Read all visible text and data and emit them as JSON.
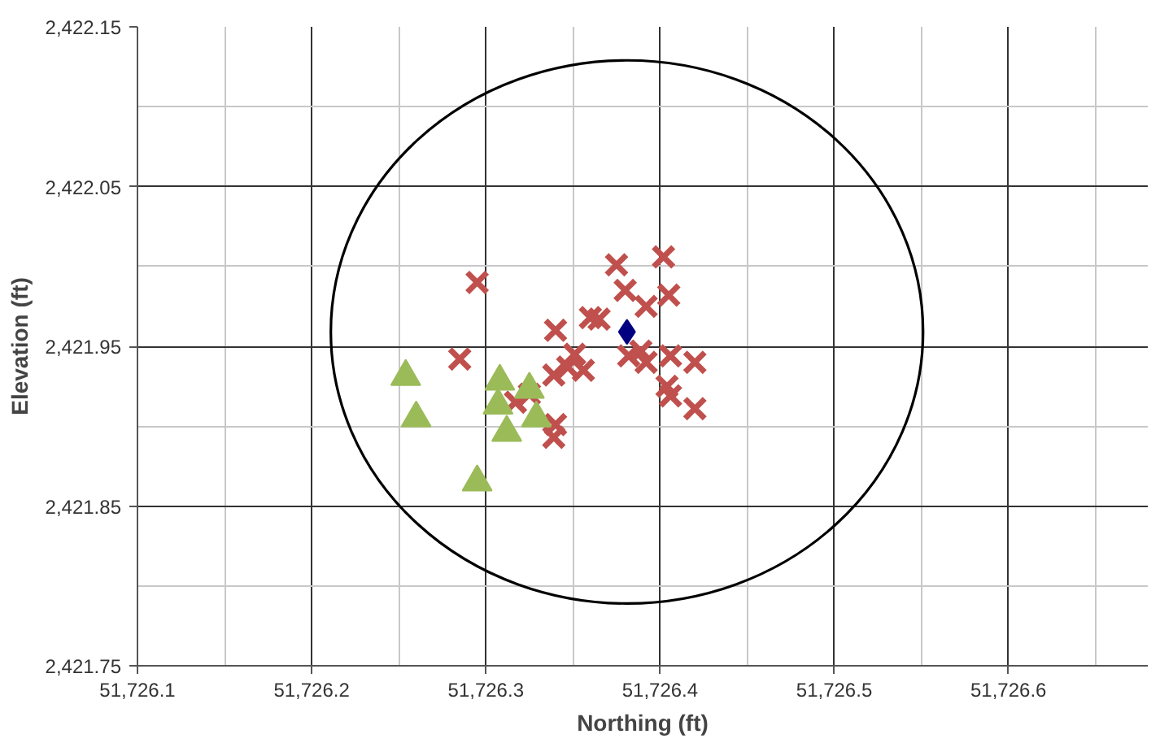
{
  "chart_data": {
    "type": "scatter",
    "xlabel": "Northing (ft)",
    "ylabel": "Elevation (ft)",
    "xlim": [
      51726.1,
      51726.68
    ],
    "ylim": [
      2421.75,
      2422.15
    ],
    "xticks": [
      {
        "value": 51726.1,
        "label": "51,726.1"
      },
      {
        "value": 51726.2,
        "label": "51,726.2"
      },
      {
        "value": 51726.3,
        "label": "51,726.3"
      },
      {
        "value": 51726.4,
        "label": "51,726.4"
      },
      {
        "value": 51726.5,
        "label": "51,726.5"
      },
      {
        "value": 51726.6,
        "label": "51,726.6"
      }
    ],
    "yticks": [
      {
        "value": 2421.75,
        "label": "2,421.75"
      },
      {
        "value": 2421.85,
        "label": "2,421.85"
      },
      {
        "value": 2421.95,
        "label": "2,421.95"
      },
      {
        "value": 2422.05,
        "label": "2,422.05"
      },
      {
        "value": 2422.15,
        "label": "2,422.15"
      }
    ],
    "grid": true,
    "series": [
      {
        "color": "#c0504d",
        "marker": "cross",
        "x": [
          51726.295,
          51726.285,
          51726.375,
          51726.402,
          51726.38,
          51726.405,
          51726.392,
          51726.36,
          51726.365,
          51726.34,
          51726.351,
          51726.339,
          51726.347,
          51726.356,
          51726.325,
          51726.317,
          51726.34,
          51726.339,
          51726.382,
          51726.389,
          51726.406,
          51726.404,
          51726.406,
          51726.42,
          51726.42,
          51726.392
        ],
        "values": [
          2421.99,
          2421.942,
          2422.001,
          2422.006,
          2421.985,
          2421.982,
          2421.975,
          2421.968,
          2421.967,
          2421.96,
          2421.945,
          2421.932,
          2421.937,
          2421.935,
          2421.92,
          2421.915,
          2421.901,
          2421.893,
          2421.944,
          2421.947,
          2421.944,
          2421.925,
          2421.919,
          2421.94,
          2421.911,
          2421.94
        ]
      },
      {
        "color": "#9bbb59",
        "marker": "triangle",
        "x": [
          51726.254,
          51726.26,
          51726.295,
          51726.308,
          51726.307,
          51726.312,
          51726.325,
          51726.329
        ],
        "values": [
          2421.931,
          2421.905,
          2421.865,
          2421.928,
          2421.913,
          2421.896,
          2421.923,
          2421.905
        ]
      },
      {
        "color": "#000080",
        "marker": "diamond",
        "x": [
          51726.381
        ],
        "values": [
          2421.959
        ]
      }
    ]
  }
}
